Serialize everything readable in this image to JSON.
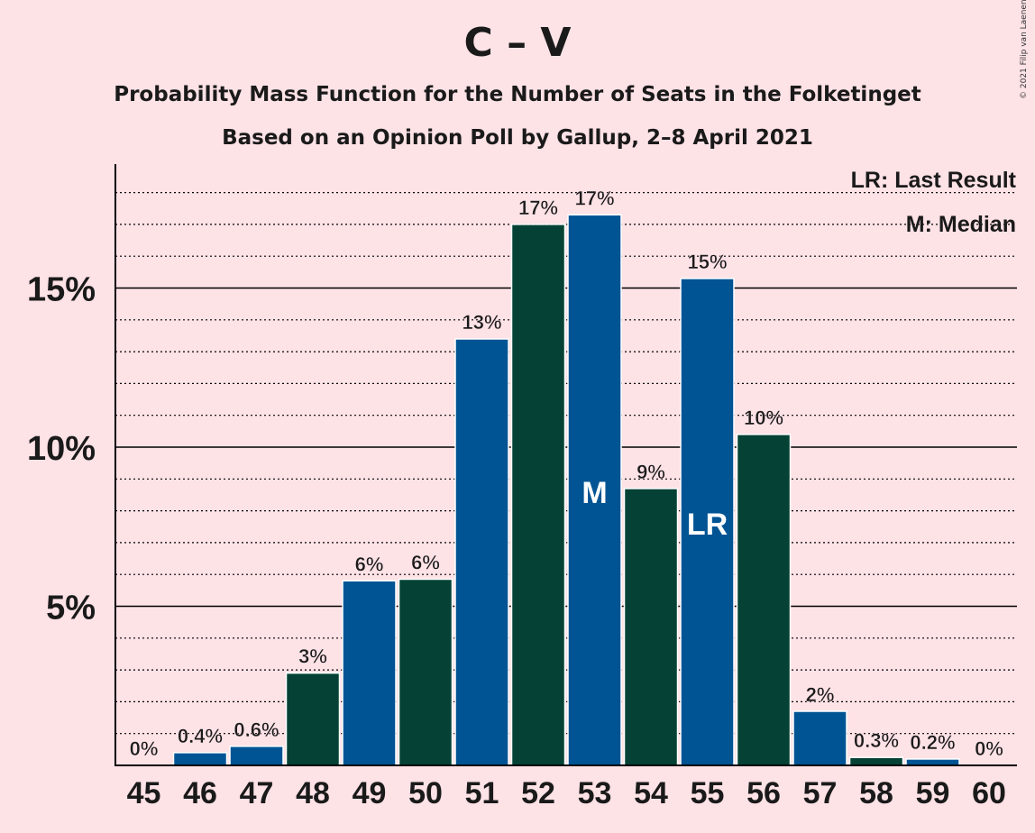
{
  "title": "C – V",
  "subtitle": "Probability Mass Function for the Number of Seats in the Folketinget",
  "subtitle2": "Based on an Opinion Poll by Gallup, 2–8 April 2021",
  "copyright": "© 2021 Filip van Laenen",
  "legend": {
    "last_result": "LR: Last Result",
    "median": "M: Median"
  },
  "colors": {
    "background": "#fde2e6",
    "blue": "#005494",
    "green": "#054235"
  },
  "chart_data": {
    "type": "bar",
    "categories": [
      "45",
      "46",
      "47",
      "48",
      "49",
      "50",
      "51",
      "52",
      "53",
      "54",
      "55",
      "56",
      "57",
      "58",
      "59",
      "60"
    ],
    "values": [
      0,
      0.4,
      0.6,
      2.9,
      5.8,
      5.85,
      13.4,
      17.0,
      17.3,
      8.7,
      15.3,
      10.4,
      1.7,
      0.25,
      0.2,
      0
    ],
    "value_labels": [
      "0%",
      "0.4%",
      "0.6%",
      "3%",
      "6%",
      "6%",
      "13%",
      "17%",
      "17%",
      "9%",
      "15%",
      "10%",
      "2%",
      "0.3%",
      "0.2%",
      "0%"
    ],
    "bar_colors": [
      "blue",
      "blue",
      "blue",
      "green",
      "blue",
      "green",
      "blue",
      "green",
      "blue",
      "green",
      "blue",
      "green",
      "blue",
      "green",
      "blue",
      "green"
    ],
    "markers": {
      "53": "M",
      "55": "LR"
    },
    "yticks": [
      5,
      10,
      15
    ],
    "ytick_labels": [
      "5%",
      "10%",
      "15%"
    ],
    "ylim": [
      0,
      19
    ],
    "grid": true,
    "legend_position": "top-right"
  }
}
